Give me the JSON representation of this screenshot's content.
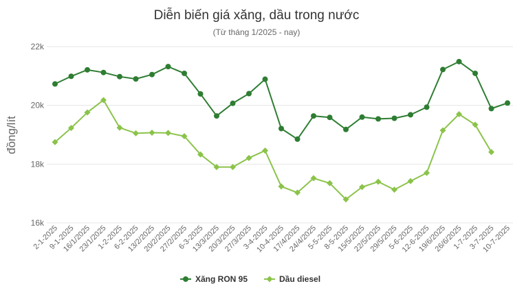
{
  "chart_data": {
    "type": "line",
    "title": "Diễn biến giá xăng, dầu trong nước",
    "subtitle": "(Từ tháng 1/2025 - nay)",
    "ylabel": "đồng/lít",
    "xlabel": "",
    "ylim": [
      16000,
      22000
    ],
    "yticks": [
      16000,
      18000,
      20000,
      22000
    ],
    "ytick_labels": [
      "16k",
      "18k",
      "20k",
      "22k"
    ],
    "grid": true,
    "legend_position": "bottom-center",
    "categories": [
      "2-1-2025",
      "9-1-2025",
      "16/1/2025",
      "23/1/2025",
      "1-2-2025",
      "6-2-2025",
      "13/2/2025",
      "20/2/2025",
      "27/2/2025",
      "6-3-2025",
      "13/3/2025",
      "20/3/2025",
      "27/3/2025",
      "3-4-2025",
      "10-4-2025",
      "17/4/2025",
      "24/4/2025",
      "5-5-2025",
      "8-5-2025",
      "15/5/2025",
      "22/5/2025",
      "29/5/2025",
      "5-6-2025",
      "12-6-2025",
      "19/6/2025",
      "26/6/2025",
      "1-7-2025",
      "3-7-2025",
      "10-7-2025"
    ],
    "series": [
      {
        "name": "Xăng RON 95",
        "color": "#2e7d32",
        "marker": "circle",
        "values": [
          20730,
          20990,
          21210,
          21120,
          20980,
          20900,
          21050,
          21320,
          21090,
          20390,
          19640,
          20070,
          20400,
          20890,
          19210,
          18850,
          19640,
          19590,
          19180,
          19600,
          19540,
          19560,
          19680,
          19940,
          21220,
          21490,
          21090,
          19890,
          20080
        ]
      },
      {
        "name": "Dầu diesel",
        "color": "#8bc34a",
        "marker": "diamond",
        "values": [
          18750,
          19230,
          19760,
          20180,
          19240,
          19050,
          19070,
          19060,
          18950,
          18330,
          17900,
          17900,
          18210,
          18460,
          17240,
          17030,
          17520,
          17350,
          16800,
          17220,
          17400,
          17130,
          17420,
          17700,
          19150,
          19700,
          19340,
          18410,
          null
        ]
      }
    ]
  }
}
